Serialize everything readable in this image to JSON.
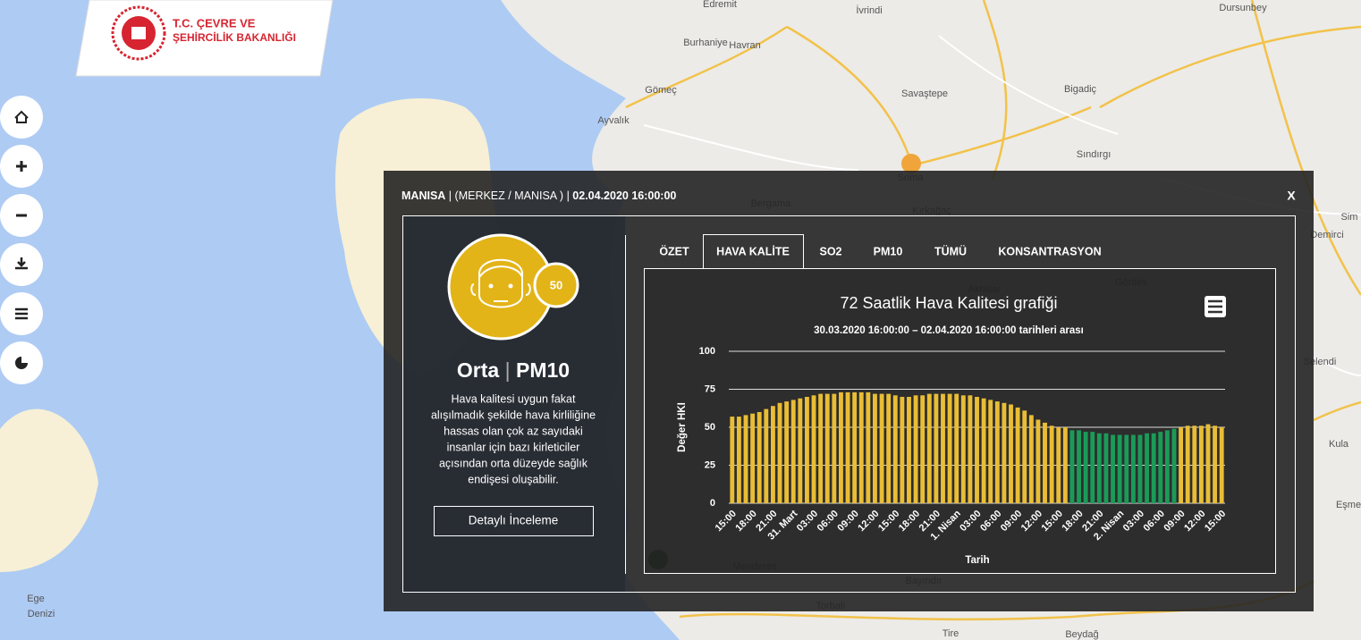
{
  "header": {
    "logo_line1": "T.C. ÇEVRE VE",
    "logo_line2": "ŞEHİRCİLİK BAKANLIĞI"
  },
  "map": {
    "labels": [
      "Edremit",
      "Havran",
      "İvrindi",
      "Dursunbey",
      "Burhaniye",
      "Gömeç",
      "Ayvalık",
      "Savaştepe",
      "Bigadiç",
      "Sındırgı",
      "Soma",
      "Bergama",
      "Kırkağaç",
      "Sim",
      "Demirci",
      "Gördes",
      "Akhisar",
      "Selendi",
      "Kula",
      "Eşme",
      "Menderes",
      "Bayındır",
      "Torbalı",
      "Tire",
      "Beydağ",
      "Ege",
      "Denizi"
    ]
  },
  "panel": {
    "location": "MANISA",
    "separator": "|",
    "district": "(MERKEZ / MANISA )",
    "datetime": "02.04.2020 16:00:00",
    "close": "X",
    "index_value": 50,
    "level": "Orta",
    "pollutant": "PM10",
    "description": [
      "Hava kalitesi uygun fakat",
      "alışılmadık şekilde hava kirliliğine",
      "hassas olan çok az sayıdaki",
      "insanlar için bazı kirleticiler",
      "açısından orta düzeyde sağlık",
      "endişesi oluşabilir."
    ],
    "button": "Detaylı İnceleme",
    "tabs": [
      "ÖZET",
      "HAVA KALİTE",
      "SO2",
      "PM10",
      "TÜMÜ",
      "KONSANTRASYON"
    ]
  },
  "chart_data": {
    "type": "bar",
    "title": "72 Saatlik Hava Kalitesi grafiği",
    "subtitle": "30.03.2020 16:00:00 – 02.04.2020 16:00:00 tarihleri arası",
    "y_axis_label": "Değer HKI",
    "x_axis_label": "Tarih",
    "categories": [
      "15:00",
      null,
      null,
      "18:00",
      null,
      null,
      "21:00",
      null,
      null,
      "31. Mart",
      null,
      null,
      "03:00",
      null,
      null,
      "06:00",
      null,
      null,
      "09:00",
      null,
      null,
      "12:00",
      null,
      null,
      "15:00",
      null,
      null,
      "18:00",
      null,
      null,
      "21:00",
      null,
      null,
      "1. Nisan",
      null,
      null,
      "03:00",
      null,
      null,
      "06:00",
      null,
      null,
      "09:00",
      null,
      null,
      "12:00",
      null,
      null,
      "15:00",
      null,
      null,
      "18:00",
      null,
      null,
      "21:00",
      null,
      null,
      "2. Nisan",
      null,
      null,
      "03:00",
      null,
      null,
      "06:00",
      null,
      null,
      "09:00",
      null,
      null,
      "12:00",
      null,
      null,
      "15:00"
    ],
    "values": [
      57,
      57,
      58,
      59,
      60,
      62,
      64,
      66,
      67,
      68,
      69,
      70,
      71,
      72,
      72,
      72,
      73,
      73,
      73,
      73,
      73,
      72,
      72,
      72,
      71,
      70,
      70,
      71,
      71,
      72,
      72,
      72,
      72,
      72,
      71,
      71,
      70,
      69,
      68,
      67,
      66,
      65,
      63,
      61,
      58,
      55,
      53,
      51,
      50,
      50,
      48,
      48,
      47,
      47,
      46,
      46,
      45,
      45,
      45,
      45,
      45,
      46,
      46,
      47,
      48,
      49,
      50,
      51,
      51,
      51,
      52,
      51,
      50
    ],
    "colors": [
      "#e9bd35",
      "#e9bd35",
      "#e9bd35",
      "#e9bd35",
      "#e9bd35",
      "#e9bd35",
      "#e9bd35",
      "#e9bd35",
      "#e9bd35",
      "#e9bd35",
      "#e9bd35",
      "#e9bd35",
      "#e9bd35",
      "#e9bd35",
      "#e9bd35",
      "#e9bd35",
      "#e9bd35",
      "#e9bd35",
      "#e9bd35",
      "#e9bd35",
      "#e9bd35",
      "#e9bd35",
      "#e9bd35",
      "#e9bd35",
      "#e9bd35",
      "#e9bd35",
      "#e9bd35",
      "#e9bd35",
      "#e9bd35",
      "#e9bd35",
      "#e9bd35",
      "#e9bd35",
      "#e9bd35",
      "#e9bd35",
      "#e9bd35",
      "#e9bd35",
      "#e9bd35",
      "#e9bd35",
      "#e9bd35",
      "#e9bd35",
      "#e9bd35",
      "#e9bd35",
      "#e9bd35",
      "#e9bd35",
      "#e9bd35",
      "#e9bd35",
      "#e9bd35",
      "#e9bd35",
      "#e9bd35",
      "#e9bd35",
      "#1a9b58",
      "#1a9b58",
      "#1a9b58",
      "#1a9b58",
      "#1a9b58",
      "#1a9b58",
      "#1a9b58",
      "#1a9b58",
      "#1a9b58",
      "#1a9b58",
      "#1a9b58",
      "#1a9b58",
      "#1a9b58",
      "#1a9b58",
      "#1a9b58",
      "#1a9b58",
      "#e9bd35",
      "#e9bd35",
      "#e9bd35",
      "#e9bd35",
      "#e9bd35",
      "#e9bd35",
      "#e9bd35"
    ],
    "ylim": [
      0,
      100
    ],
    "yticks": [
      0,
      25,
      50,
      75,
      100
    ],
    "grid": true
  }
}
